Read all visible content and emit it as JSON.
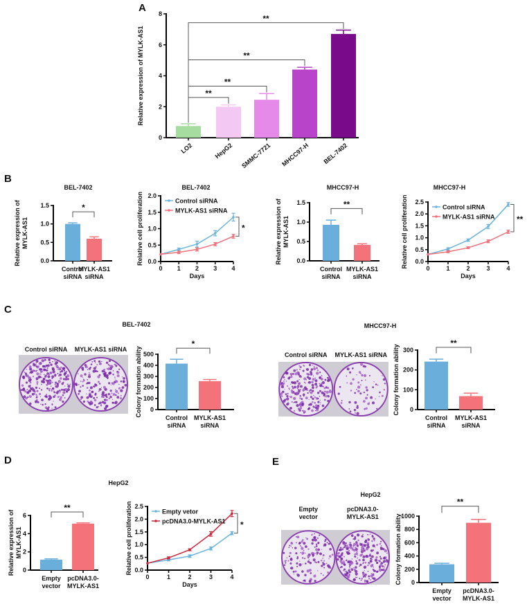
{
  "panels": [
    {
      "letter": "A"
    },
    {
      "letter": "B"
    },
    {
      "letter": "C",
      "subtitles": [
        "BEL-7402",
        "MHCC97-H"
      ]
    },
    {
      "letter": "D",
      "subtitles": [
        "HepG2"
      ]
    },
    {
      "letter": "E",
      "subtitles": [
        "HepG2"
      ]
    }
  ],
  "colony_images": [
    {
      "labels": [
        [
          "Control siRNA"
        ],
        [
          "MYLK-AS1 siRNA"
        ]
      ]
    },
    {
      "labels": [
        [
          "Control siRNA"
        ],
        [
          "MYLK-AS1 siRNA"
        ]
      ]
    },
    {
      "labels": [
        [
          "Empty",
          "vector"
        ],
        [
          "pcDNA3.0-",
          "MYLK-AS1"
        ]
      ]
    }
  ],
  "chart_data": [
    {
      "type": "bar",
      "title": "",
      "ylabel": [
        "Relative expression of  MYLK-AS1"
      ],
      "categories": [
        [
          "LO2"
        ],
        [
          "HepG2"
        ],
        [
          "SMMC-7721"
        ],
        [
          "MHCC97-H"
        ],
        [
          "BEL-7402"
        ]
      ],
      "values": [
        0.75,
        2.0,
        2.45,
        4.4,
        6.7
      ],
      "errors": [
        0.15,
        0.12,
        0.4,
        0.15,
        0.25
      ],
      "colors": [
        "#a6dca0",
        "#f3c8f3",
        "#e68ae9",
        "#b845c9",
        "#790a89"
      ],
      "ylim": [
        0,
        8
      ],
      "yticks": [
        "0",
        "2",
        "4",
        "6",
        "8"
      ],
      "significance": [
        {
          "from": 0,
          "to": 1,
          "label": "**"
        },
        {
          "from": 0,
          "to": 2,
          "label": "**"
        },
        {
          "from": 0,
          "to": 3,
          "label": "**"
        },
        {
          "from": 0,
          "to": 4,
          "label": "**"
        }
      ]
    },
    {
      "type": "bar",
      "title": "BEL-7402",
      "ylabel": [
        "Relative expression of",
        "MYLK-AS1"
      ],
      "categories": [
        [
          "Control",
          "siRNA"
        ],
        [
          "MYLK-AS1",
          "siRNA"
        ]
      ],
      "values": [
        1.0,
        0.6
      ],
      "errors": [
        0.03,
        0.05
      ],
      "colors": [
        "#6aaedc",
        "#f4737b"
      ],
      "ylim": [
        0,
        1.5
      ],
      "yticks": [
        "0.0",
        "0.5",
        "1.0",
        "1.5"
      ],
      "significance": [
        {
          "from": 0,
          "to": 1,
          "label": "*"
        }
      ]
    },
    {
      "type": "line",
      "title": "BEL-7402",
      "ylabel": [
        "Relative cell proliferation"
      ],
      "xlabel": "Days",
      "x": [
        0,
        1,
        2,
        3,
        4
      ],
      "xticks": [
        "0",
        "1",
        "2",
        "3",
        "4"
      ],
      "ylim": [
        0,
        2.0
      ],
      "yticks": [
        "0.0",
        "0.5",
        "1.0",
        "1.5",
        "2.0"
      ],
      "series": [
        {
          "name": "Control siRNA",
          "color": "#6ab4dc",
          "values": [
            0.22,
            0.37,
            0.53,
            0.86,
            1.35
          ],
          "errors": [
            0,
            0.04,
            0.09,
            0.08,
            0.12
          ]
        },
        {
          "name": "MYLK-AS1 siRNA",
          "color": "#f0707a",
          "values": [
            0.22,
            0.28,
            0.37,
            0.53,
            0.77
          ],
          "errors": [
            0,
            0.04,
            0.05,
            0.05,
            0.06
          ]
        }
      ],
      "significance": [
        {
          "label": "*"
        }
      ]
    },
    {
      "type": "bar",
      "title": "MHCC97-H",
      "ylabel": [
        "Relative expression of",
        "MYLK-AS1"
      ],
      "categories": [
        [
          "Control",
          "siRNA"
        ],
        [
          "MYLK-AS1",
          "siRNA"
        ]
      ],
      "values": [
        0.93,
        0.41
      ],
      "errors": [
        0.12,
        0.03
      ],
      "colors": [
        "#6aaedc",
        "#f4737b"
      ],
      "ylim": [
        0,
        1.5
      ],
      "yticks": [
        "0.0",
        "0.5",
        "1.0",
        "1.5"
      ],
      "significance": [
        {
          "from": 0,
          "to": 1,
          "label": "**"
        }
      ]
    },
    {
      "type": "line",
      "title": "MHCC97-H",
      "ylabel": [
        "Relative cell proliferation"
      ],
      "xlabel": "Days",
      "x": [
        0,
        1,
        2,
        3,
        4
      ],
      "xticks": [
        "0",
        "1",
        "2",
        "3",
        "4"
      ],
      "ylim": [
        0,
        2.5
      ],
      "yticks": [
        "0.0",
        "0.5",
        "1.0",
        "1.5",
        "2.0",
        "2.5"
      ],
      "series": [
        {
          "name": "Control siRNA",
          "color": "#6ab4dc",
          "values": [
            0.3,
            0.53,
            0.9,
            1.47,
            2.4
          ],
          "errors": [
            0,
            0.05,
            0.05,
            0.09,
            0.08
          ]
        },
        {
          "name": "MYLK-AS1 siRNA",
          "color": "#f0707a",
          "values": [
            0.3,
            0.41,
            0.58,
            0.85,
            1.25
          ],
          "errors": [
            0,
            0.04,
            0.04,
            0.06,
            0.07
          ]
        }
      ],
      "significance": [
        {
          "label": "**"
        }
      ]
    },
    {
      "type": "bar",
      "title": "",
      "ylabel": [
        "Colony formation ability"
      ],
      "categories": [
        [
          "Control",
          "siRNA"
        ],
        [
          "MYLK-AS1",
          "siRNA"
        ]
      ],
      "values": [
        415,
        257
      ],
      "errors": [
        40,
        15
      ],
      "colors": [
        "#6aaedc",
        "#f4737b"
      ],
      "ylim": [
        0,
        500
      ],
      "yticks": [
        "0",
        "100",
        "200",
        "300",
        "400",
        "500"
      ],
      "significance": [
        {
          "from": 0,
          "to": 1,
          "label": "*"
        }
      ]
    },
    {
      "type": "bar",
      "title": "",
      "ylabel": [
        "Colony formation ability"
      ],
      "categories": [
        [
          "Control",
          "siRNA"
        ],
        [
          "MYLK-AS1",
          "siRNA"
        ]
      ],
      "values": [
        242,
        68
      ],
      "errors": [
        12,
        15
      ],
      "colors": [
        "#6aaedc",
        "#f4737b"
      ],
      "ylim": [
        0,
        300
      ],
      "yticks": [
        "0",
        "100",
        "200",
        "300"
      ],
      "significance": [
        {
          "from": 0,
          "to": 1,
          "label": "**"
        }
      ]
    },
    {
      "type": "bar",
      "title": "",
      "ylabel": [
        "Relative expression of",
        "MYLK-AS1"
      ],
      "categories": [
        [
          "Empty",
          "vector"
        ],
        [
          "pcDNA3.0-",
          "MYLK-AS1"
        ]
      ],
      "values": [
        1.15,
        5.1
      ],
      "errors": [
        0.08,
        0.08
      ],
      "colors": [
        "#6aaedc",
        "#f4737b"
      ],
      "ylim": [
        0,
        6
      ],
      "yticks": [
        "0",
        "2",
        "4",
        "6"
      ],
      "significance": [
        {
          "from": 0,
          "to": 1,
          "label": "**"
        }
      ]
    },
    {
      "type": "line",
      "title": "",
      "ylabel": [
        "Relative cell proliferation"
      ],
      "xlabel": "Days",
      "x": [
        0,
        1,
        2,
        3,
        4
      ],
      "xticks": [
        "0",
        "1",
        "2",
        "3",
        "4"
      ],
      "ylim": [
        0,
        2.5
      ],
      "yticks": [
        "0.0",
        "0.5",
        "1.0",
        "1.5",
        "2.0",
        "2.5"
      ],
      "series": [
        {
          "name": "Empty vetor",
          "color": "#6ab4dc",
          "values": [
            0.27,
            0.4,
            0.55,
            0.85,
            1.45
          ],
          "errors": [
            0,
            0.04,
            0.05,
            0.06,
            0.06
          ]
        },
        {
          "name": "pcDNA3.0-MYLK-AS1",
          "color": "#c8283c",
          "values": [
            0.27,
            0.48,
            0.8,
            1.42,
            2.22
          ],
          "errors": [
            0,
            0.04,
            0.04,
            0.09,
            0.12
          ]
        }
      ],
      "significance": [
        {
          "label": "*"
        }
      ]
    },
    {
      "type": "bar",
      "title": "",
      "ylabel": [
        "Colony formation ability"
      ],
      "categories": [
        [
          "Empty",
          "vector"
        ],
        [
          "pcDNA3.0-",
          "MYLK-AS1"
        ]
      ],
      "values": [
        275,
        900
      ],
      "errors": [
        15,
        50
      ],
      "colors": [
        "#6aaedc",
        "#f4737b"
      ],
      "ylim": [
        0,
        1000
      ],
      "yticks": [
        "0",
        "200",
        "400",
        "600",
        "800",
        "1000"
      ],
      "significance": [
        {
          "from": 0,
          "to": 1,
          "label": "**"
        }
      ]
    }
  ]
}
